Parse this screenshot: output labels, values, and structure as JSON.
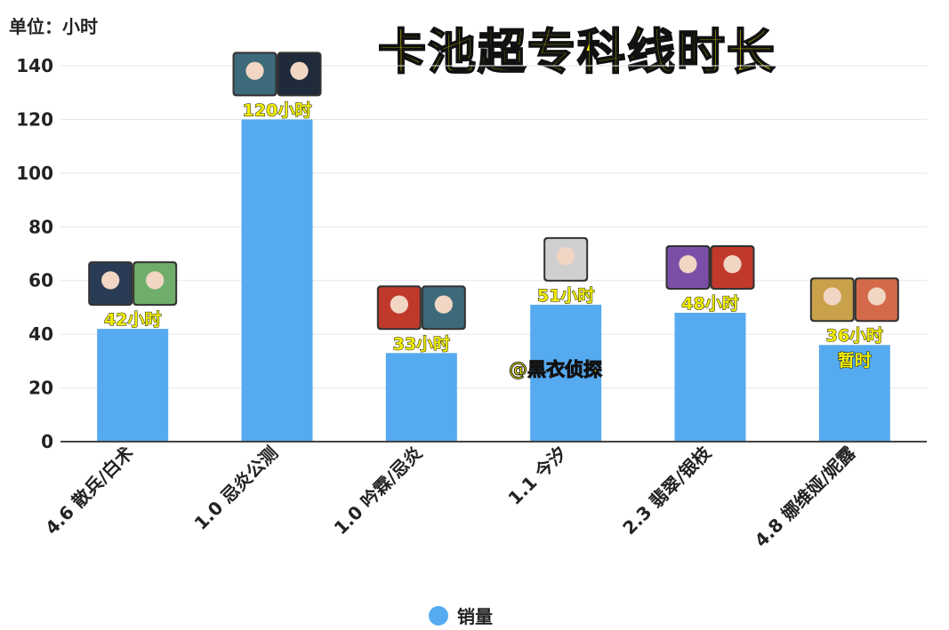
{
  "unit_label": "单位：小时",
  "title": "卡池超专科线时长",
  "watermark": "@黑衣侦探",
  "legend": {
    "label": "销量",
    "color": "#56aaf0"
  },
  "colors": {
    "bar": "#56aaf0",
    "label_fill": "#f2ee00",
    "grid": "#e6e6e6",
    "axis": "#444444"
  },
  "chart_data": {
    "type": "bar",
    "title": "卡池超专科线时长",
    "categories": [
      "4.6 散兵/白术",
      "1.0 忌炎公测",
      "1.0 吟霖/忌炎",
      "1.1 今汐",
      "2.3 翡翠/银枝",
      "4.8 娜维娅/妮露"
    ],
    "series": [
      {
        "name": "销量",
        "values": [
          42,
          120,
          33,
          51,
          48,
          36
        ]
      }
    ],
    "data_labels": [
      "42小时",
      "120小时",
      "33小时",
      "51小时",
      "48小时",
      "36小时"
    ],
    "notes": [
      "",
      "",
      "",
      "",
      "",
      "暂时"
    ],
    "ylim": [
      0,
      140
    ],
    "yticks": [
      0,
      20,
      40,
      60,
      80,
      100,
      120,
      140
    ],
    "grid": true,
    "legend_position": "bottom-center"
  }
}
